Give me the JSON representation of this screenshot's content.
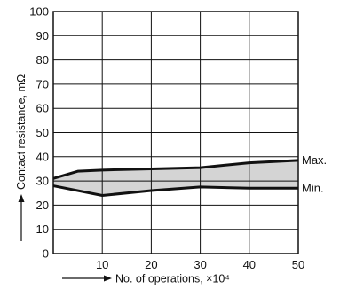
{
  "chart_data": {
    "type": "area",
    "xlabel": "No. of operations, ×10⁴",
    "ylabel": "Contact resistance, mΩ",
    "xlim": [
      0,
      50
    ],
    "ylim": [
      0,
      100
    ],
    "x_ticks": [
      "10",
      "20",
      "30",
      "40",
      "50"
    ],
    "y_ticks": [
      "0",
      "10",
      "20",
      "30",
      "40",
      "50",
      "60",
      "70",
      "80",
      "90",
      "100"
    ],
    "grid": true,
    "band_fill": "#d4d4d4",
    "series": [
      {
        "name": "Max.",
        "x": [
          0,
          5,
          10,
          20,
          30,
          40,
          50
        ],
        "values": [
          31,
          34,
          34.5,
          35,
          35.5,
          37.5,
          38.5
        ]
      },
      {
        "name": "Min.",
        "x": [
          0,
          10,
          20,
          30,
          40,
          50
        ],
        "values": [
          28,
          24,
          26,
          27.5,
          27,
          27
        ]
      }
    ]
  }
}
